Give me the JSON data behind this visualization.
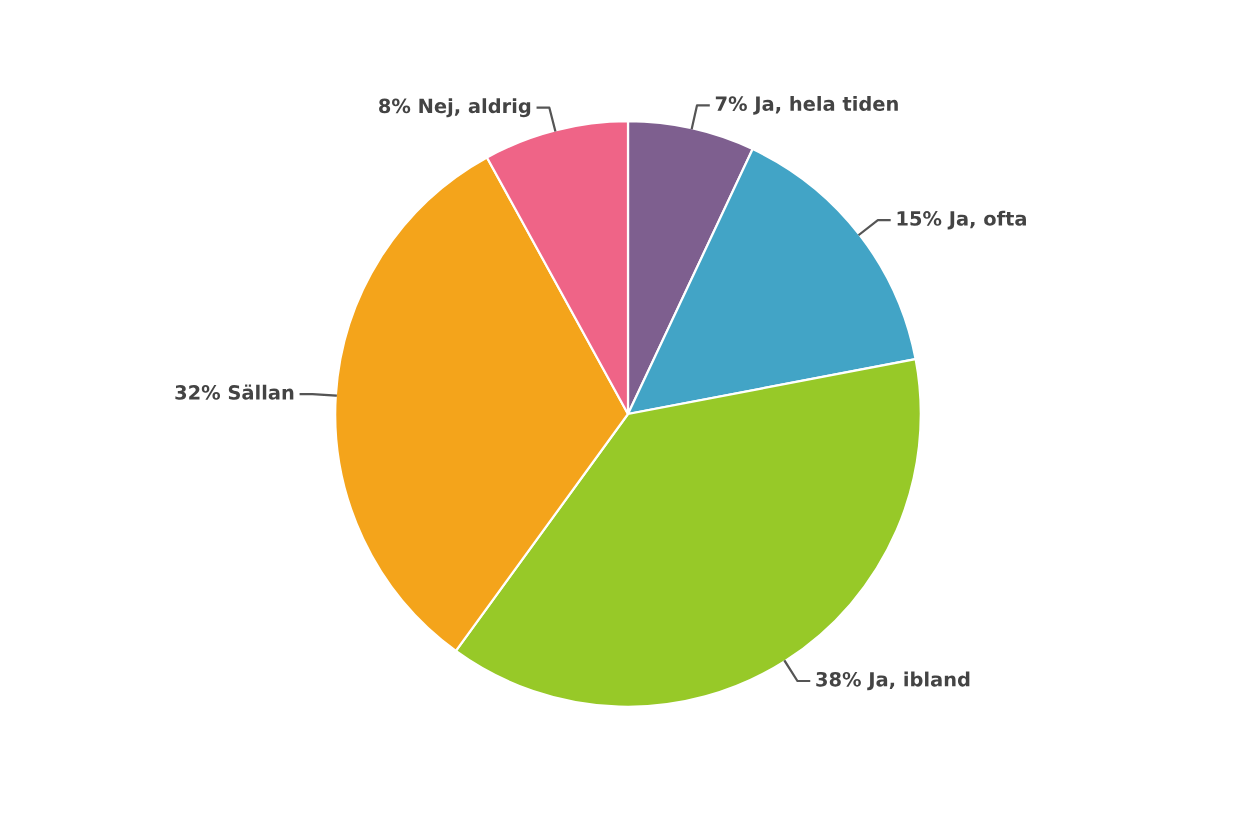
{
  "chart_data": {
    "type": "pie",
    "categories": [
      "Ja, hela tiden",
      "Ja, ofta",
      "Ja, ibland",
      "Sällan",
      "Nej, aldrig"
    ],
    "values": [
      7,
      15,
      38,
      32,
      8
    ],
    "value_labels": [
      "7%",
      "15%",
      "38%",
      "32%",
      "8%"
    ],
    "colors": [
      "#7e5f8f",
      "#42a4c6",
      "#97c928",
      "#f4a41b",
      "#ef6487"
    ],
    "legend": false
  }
}
